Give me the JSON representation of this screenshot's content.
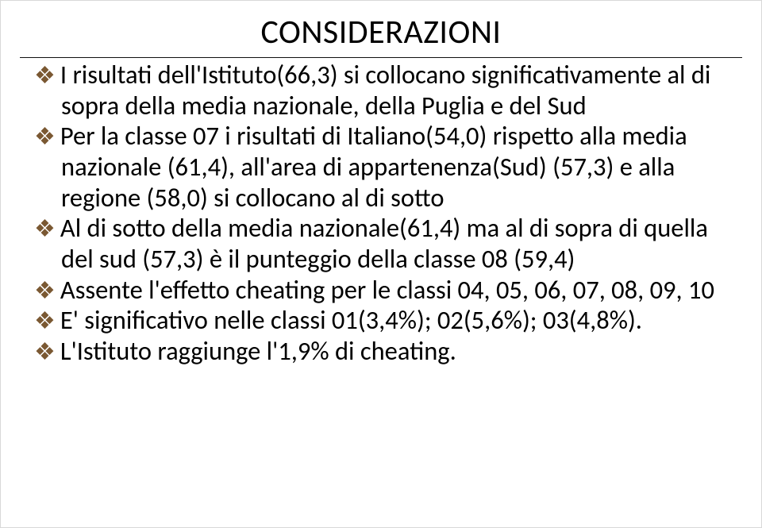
{
  "title": "CONSIDERAZIONI",
  "title_fontsize": 42,
  "title_color": "#000000",
  "rule_color": "#111111",
  "bullet_glyph": "❖",
  "bullet_glyph_color": "#7a5832",
  "body_fontsize": 32.5,
  "body_color": "#000000",
  "background_color": "#ffffff",
  "bullets": [
    "I risultati dell'Istituto(66,3) si collocano significativamente al di sopra della media nazionale, della Puglia e del Sud",
    "Per la classe 07 i risultati di Italiano(54,0) rispetto alla media nazionale (61,4), all'area di appartenenza(Sud) (57,3) e alla regione (58,0) si collocano al di sotto",
    "Al di sotto della media nazionale(61,4) ma al di sopra di quella del sud (57,3) è il punteggio della classe 08 (59,4)",
    "Assente l'effetto cheating per le classi  04, 05, 06, 07, 08, 09, 10",
    "E' significativo nelle classi 01(3,4%); 02(5,6%); 03(4,8%).",
    "L'Istituto raggiunge l'1,9% di cheating."
  ]
}
